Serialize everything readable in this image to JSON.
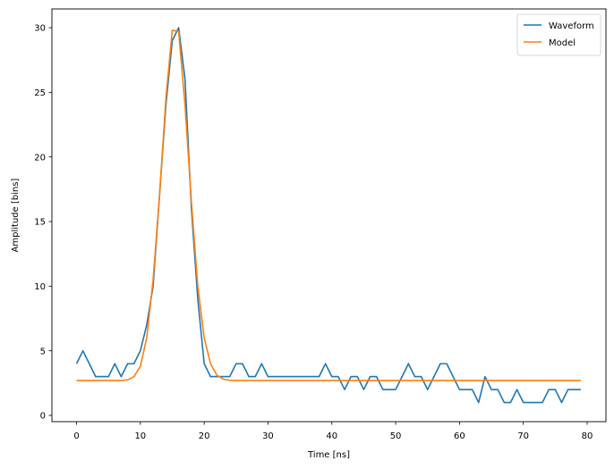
{
  "chart_data": {
    "type": "line",
    "title": "",
    "xlabel": "Time [ns]",
    "ylabel": "Amplitude [bins]",
    "xlim": [
      -4,
      83
    ],
    "ylim": [
      -0.45,
      31.5
    ],
    "xticks": [
      0,
      10,
      20,
      30,
      40,
      50,
      60,
      70,
      80
    ],
    "yticks": [
      0,
      5,
      10,
      15,
      20,
      25,
      30
    ],
    "grid": false,
    "legend_position": "upper right",
    "x": [
      0,
      1,
      2,
      3,
      4,
      5,
      6,
      7,
      8,
      9,
      10,
      11,
      12,
      13,
      14,
      15,
      16,
      17,
      18,
      19,
      20,
      21,
      22,
      23,
      24,
      25,
      26,
      27,
      28,
      29,
      30,
      31,
      32,
      33,
      34,
      35,
      36,
      37,
      38,
      39,
      40,
      41,
      42,
      43,
      44,
      45,
      46,
      47,
      48,
      49,
      50,
      51,
      52,
      53,
      54,
      55,
      56,
      57,
      58,
      59,
      60,
      61,
      62,
      63,
      64,
      65,
      66,
      67,
      68,
      69,
      70,
      71,
      72,
      73,
      74,
      75,
      76,
      77,
      78,
      79
    ],
    "series": [
      {
        "name": "Waveform",
        "color": "#1f77b4",
        "values": [
          4,
          5,
          4,
          3,
          3,
          3,
          4,
          3,
          4,
          4,
          5,
          7,
          10,
          17,
          24,
          29,
          30,
          26,
          16,
          9,
          4,
          3,
          3,
          3,
          3,
          4,
          4,
          3,
          3,
          4,
          3,
          3,
          3,
          3,
          3,
          3,
          3,
          3,
          3,
          4,
          3,
          3,
          2,
          3,
          3,
          2,
          3,
          3,
          2,
          2,
          2,
          3,
          4,
          3,
          3,
          2,
          3,
          4,
          4,
          3,
          2,
          2,
          2,
          1,
          3,
          2,
          2,
          1,
          1,
          2,
          1,
          1,
          1,
          1,
          2,
          2,
          1,
          2,
          2,
          2
        ]
      },
      {
        "name": "Model",
        "color": "#ff7f0e",
        "values": [
          2.7,
          2.7,
          2.7,
          2.7,
          2.7,
          2.7,
          2.7,
          2.7,
          2.75,
          3.0,
          3.8,
          6.0,
          10.5,
          17.0,
          24.5,
          29.8,
          29.7,
          24.0,
          16.5,
          10.0,
          6.0,
          4.0,
          3.1,
          2.8,
          2.72,
          2.7,
          2.7,
          2.7,
          2.7,
          2.7,
          2.7,
          2.7,
          2.7,
          2.7,
          2.7,
          2.7,
          2.7,
          2.7,
          2.7,
          2.7,
          2.7,
          2.7,
          2.7,
          2.7,
          2.7,
          2.7,
          2.7,
          2.7,
          2.7,
          2.7,
          2.7,
          2.7,
          2.7,
          2.7,
          2.7,
          2.7,
          2.7,
          2.7,
          2.7,
          2.7,
          2.7,
          2.7,
          2.7,
          2.7,
          2.7,
          2.7,
          2.7,
          2.7,
          2.7,
          2.7,
          2.7,
          2.7,
          2.7,
          2.7,
          2.7,
          2.7,
          2.7,
          2.7,
          2.7,
          2.7
        ]
      }
    ]
  },
  "legend": {
    "items": [
      {
        "label": "Waveform",
        "color": "#1f77b4"
      },
      {
        "label": "Model",
        "color": "#ff7f0e"
      }
    ]
  }
}
